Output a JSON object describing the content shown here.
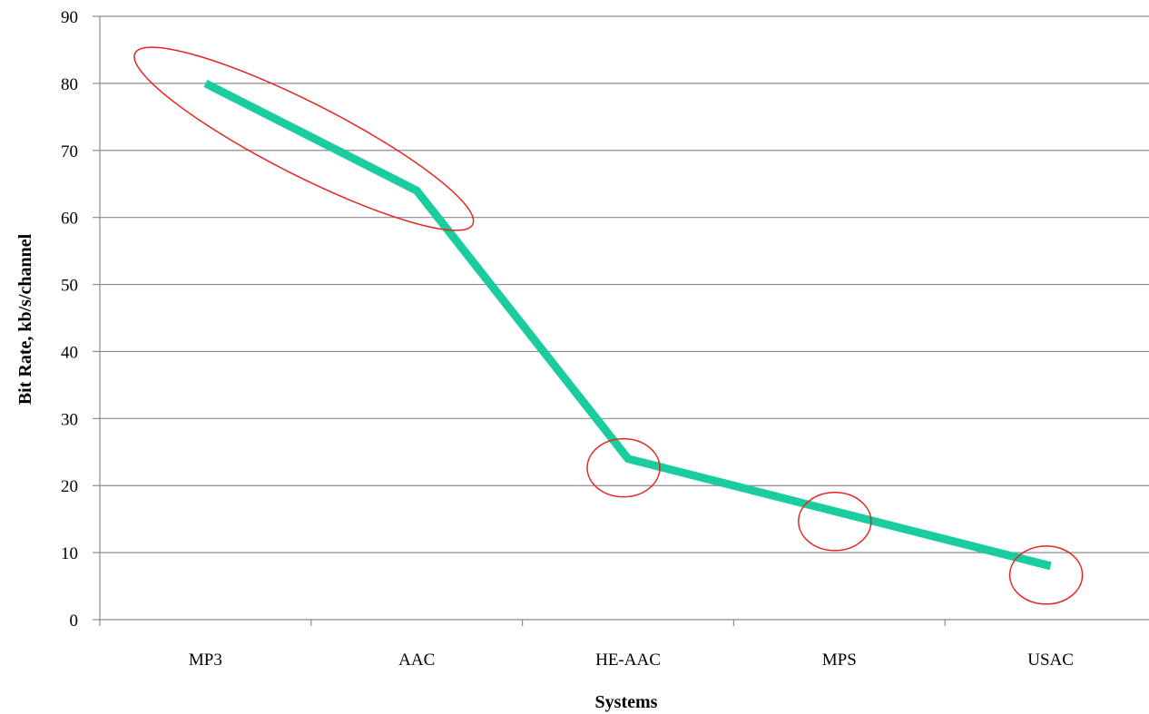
{
  "chart_data": {
    "type": "line",
    "title": "",
    "xlabel": "Systems",
    "ylabel": "Bit Rate, kb/s/channel",
    "categories": [
      "MP3",
      "AAC",
      "HE-AAC",
      "MPS",
      "USAC"
    ],
    "series": [
      {
        "values": [
          80,
          64,
          24,
          16,
          8
        ]
      }
    ],
    "ylim": [
      0,
      90
    ],
    "yticks": [
      "0",
      "10",
      "20",
      "30",
      "40",
      "50",
      "60",
      "70",
      "80",
      "90"
    ],
    "grid": "horizontal",
    "legend": "none",
    "line_color": "#1ACC9E",
    "highlight_color": "#E8241F",
    "highlights": [
      {
        "shape": "ellipse",
        "from": "MP3",
        "to": "AAC"
      },
      {
        "shape": "circle",
        "at": "HE-AAC"
      },
      {
        "shape": "circle",
        "at": "MPS"
      },
      {
        "shape": "circle",
        "at": "USAC"
      }
    ]
  }
}
